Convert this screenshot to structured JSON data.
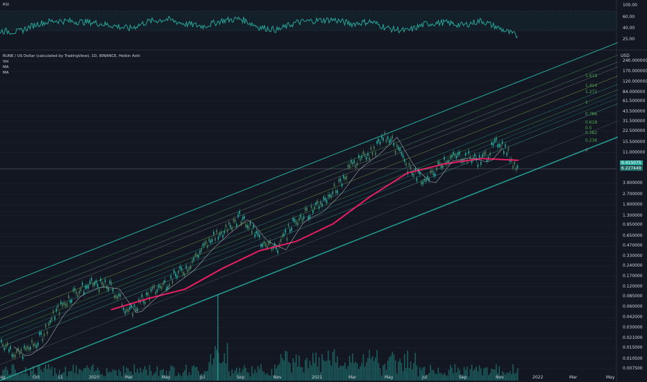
{
  "rsi_panel": {
    "title": "RSI",
    "levels": [
      "100.00",
      "60.00",
      "40.00",
      "25.00"
    ]
  },
  "main_panel": {
    "title": "RUNE / US Dollar (calculated by TradingView), 1D, BINANCE, Heikin Ashi",
    "indicators": [
      "Vol",
      "MA",
      "MA"
    ],
    "currency": "USD",
    "price_badges": [
      "6.415075",
      "6.227449"
    ]
  },
  "colors": {
    "background": "#131722",
    "candle_up": "#26a69a",
    "rsi_line": "#26a69a",
    "ma_long": "#e91e63",
    "ma_short": "#9e9e9e",
    "channel": "#26a69a",
    "volume": "#26a69a"
  },
  "chart_data": {
    "type": "line",
    "scale": "log",
    "y_ticks": [
      "240.000000",
      "170.000000",
      "120.000000",
      "84.000000",
      "61.500000",
      "43.500000",
      "31.500000",
      "22.500000",
      "15.500000",
      "11.000000",
      "3.900000",
      "2.700000",
      "1.900000",
      "1.300000",
      "0.950000",
      "0.650000",
      "0.470000",
      "0.330000",
      "0.240000",
      "0.170000",
      "0.120000",
      "0.085000",
      "0.060000",
      "0.042000",
      "0.030000",
      "0.021000",
      "0.015000",
      "0.010500",
      "0.007500"
    ],
    "x_ticks": [
      "Aug",
      "Oct",
      "11",
      "2020",
      "Mar",
      "May",
      "Jul",
      "Sep",
      "Nov",
      "2021",
      "Mar",
      "May",
      "Jul",
      "Sep",
      "Nov",
      "2022",
      "Mar",
      "May"
    ],
    "fib_labels": [
      "1.618",
      "1.414",
      "1.272",
      "1",
      "0.786",
      "0.618",
      "0.5",
      "0.382",
      "0.236",
      "0"
    ],
    "price_series": [
      {
        "date": "2019-08",
        "value": 0.02
      },
      {
        "date": "2019-09",
        "value": 0.012
      },
      {
        "date": "2019-10",
        "value": 0.018
      },
      {
        "date": "2019-11",
        "value": 0.05
      },
      {
        "date": "2019-12",
        "value": 0.1
      },
      {
        "date": "2020-01",
        "value": 0.13
      },
      {
        "date": "2020-02",
        "value": 0.12
      },
      {
        "date": "2020-03",
        "value": 0.05
      },
      {
        "date": "2020-04",
        "value": 0.09
      },
      {
        "date": "2020-05",
        "value": 0.14
      },
      {
        "date": "2020-06",
        "value": 0.22
      },
      {
        "date": "2020-07",
        "value": 0.45
      },
      {
        "date": "2020-08",
        "value": 0.8
      },
      {
        "date": "2020-09",
        "value": 1.3
      },
      {
        "date": "2020-10",
        "value": 0.6
      },
      {
        "date": "2020-11",
        "value": 0.45
      },
      {
        "date": "2020-12",
        "value": 1.2
      },
      {
        "date": "2021-01",
        "value": 1.6
      },
      {
        "date": "2021-02",
        "value": 3.0
      },
      {
        "date": "2021-03",
        "value": 7.0
      },
      {
        "date": "2021-04",
        "value": 11.0
      },
      {
        "date": "2021-05",
        "value": 20.0
      },
      {
        "date": "2021-06",
        "value": 7.0
      },
      {
        "date": "2021-07",
        "value": 4.0
      },
      {
        "date": "2021-08",
        "value": 9.0
      },
      {
        "date": "2021-09",
        "value": 10.0
      },
      {
        "date": "2021-10",
        "value": 8.5
      },
      {
        "date": "2021-11",
        "value": 17.0
      },
      {
        "date": "2021-12",
        "value": 6.2
      }
    ],
    "ma_long": [
      {
        "date": "2020-02",
        "value": 0.055
      },
      {
        "date": "2020-04",
        "value": 0.08
      },
      {
        "date": "2020-06",
        "value": 0.11
      },
      {
        "date": "2020-08",
        "value": 0.22
      },
      {
        "date": "2020-10",
        "value": 0.4
      },
      {
        "date": "2020-12",
        "value": 0.55
      },
      {
        "date": "2021-02",
        "value": 1.0
      },
      {
        "date": "2021-04",
        "value": 2.5
      },
      {
        "date": "2021-06",
        "value": 5.5
      },
      {
        "date": "2021-08",
        "value": 7.5
      },
      {
        "date": "2021-10",
        "value": 9.0
      },
      {
        "date": "2021-12",
        "value": 8.5
      }
    ],
    "rsi_values": [
      40,
      38,
      55,
      62,
      60,
      58,
      52,
      45,
      60,
      65,
      55,
      50,
      62,
      66,
      48,
      42,
      58,
      62,
      64,
      55,
      60,
      45,
      40,
      55,
      58,
      52,
      62,
      45,
      28
    ]
  }
}
